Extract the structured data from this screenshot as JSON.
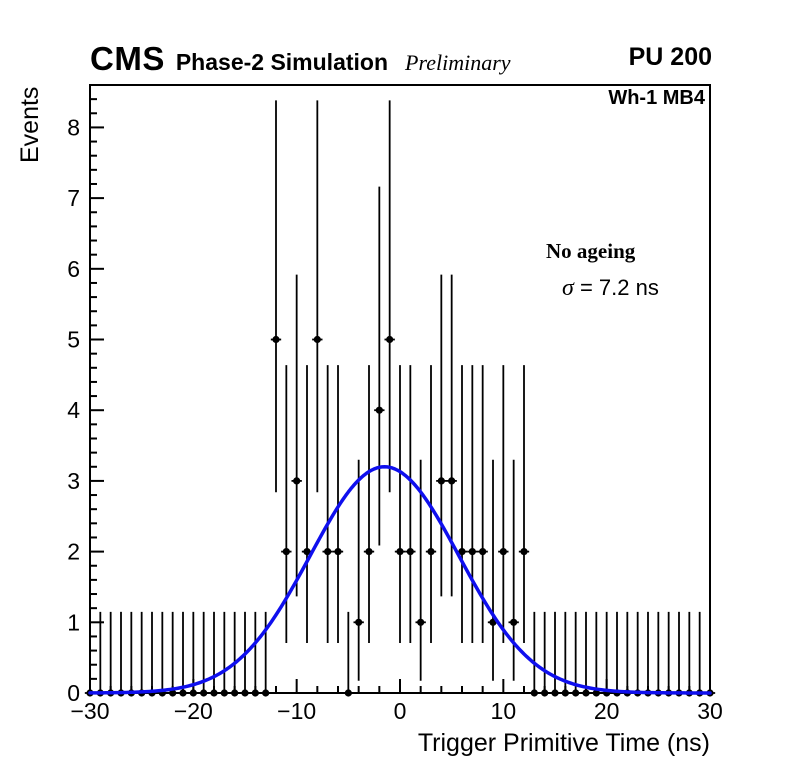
{
  "header": {
    "experiment": "CMS",
    "subtitle": "Phase-2 Simulation",
    "preliminary": "Preliminary",
    "pileup": "PU 200"
  },
  "annotations": {
    "chamber": "Wh-1 MB4",
    "ageing": "No ageing",
    "sigma_symbol": "σ",
    "sigma_value": " = 7.2 ns"
  },
  "chart_data": {
    "type": "scatter",
    "title": "",
    "xlabel": "Trigger Primitive Time (ns)",
    "ylabel": "Events",
    "xlim": [
      -30,
      30
    ],
    "ylim": [
      0,
      8.6
    ],
    "x_ticks": [
      -30,
      -20,
      -10,
      0,
      10,
      20,
      30
    ],
    "x_minor_step": 2,
    "y_ticks": [
      0,
      1,
      2,
      3,
      4,
      5,
      6,
      7,
      8
    ],
    "y_minor_step": 0.2,
    "grid": false,
    "legend": "none",
    "marker_color": "#000000",
    "points": [
      [
        -30,
        0
      ],
      [
        -29,
        0
      ],
      [
        -28,
        0
      ],
      [
        -27,
        0
      ],
      [
        -26,
        0
      ],
      [
        -25,
        0
      ],
      [
        -24,
        0
      ],
      [
        -23,
        0
      ],
      [
        -22,
        0
      ],
      [
        -21,
        0
      ],
      [
        -20,
        0
      ],
      [
        -19,
        0
      ],
      [
        -18,
        0
      ],
      [
        -17,
        0
      ],
      [
        -16,
        0
      ],
      [
        -15,
        0
      ],
      [
        -14,
        0
      ],
      [
        -13,
        0
      ],
      [
        -12,
        5
      ],
      [
        -11,
        2
      ],
      [
        -10,
        3
      ],
      [
        -9,
        2
      ],
      [
        -8,
        5
      ],
      [
        -7,
        2
      ],
      [
        -6,
        2
      ],
      [
        -5,
        0
      ],
      [
        -4,
        1
      ],
      [
        -3,
        2
      ],
      [
        -2,
        4
      ],
      [
        -1,
        5
      ],
      [
        0,
        2
      ],
      [
        1,
        2
      ],
      [
        2,
        1
      ],
      [
        3,
        2
      ],
      [
        4,
        3
      ],
      [
        5,
        3
      ],
      [
        6,
        2
      ],
      [
        7,
        2
      ],
      [
        8,
        2
      ],
      [
        9,
        1
      ],
      [
        10,
        2
      ],
      [
        11,
        1
      ],
      [
        12,
        2
      ],
      [
        13,
        0
      ],
      [
        14,
        0
      ],
      [
        15,
        0
      ],
      [
        16,
        0
      ],
      [
        17,
        0
      ],
      [
        18,
        0
      ],
      [
        19,
        0
      ],
      [
        20,
        0
      ],
      [
        21,
        0
      ],
      [
        22,
        0
      ],
      [
        23,
        0
      ],
      [
        24,
        0
      ],
      [
        25,
        0
      ],
      [
        26,
        0
      ],
      [
        27,
        0
      ],
      [
        28,
        0
      ],
      [
        29,
        0
      ],
      [
        30,
        0
      ]
    ],
    "poisson_errors": {
      "0": [
        0,
        1.148
      ],
      "1": [
        0.173,
        3.3
      ],
      "2": [
        0.708,
        4.638
      ],
      "3": [
        1.367,
        5.918
      ],
      "4": [
        2.086,
        7.163
      ],
      "5": [
        2.84,
        8.382
      ]
    },
    "fit": {
      "type": "gaussian",
      "amplitude": 3.2,
      "mean": -1.5,
      "sigma_ns": 7.2,
      "color": "#0f0fee"
    }
  }
}
